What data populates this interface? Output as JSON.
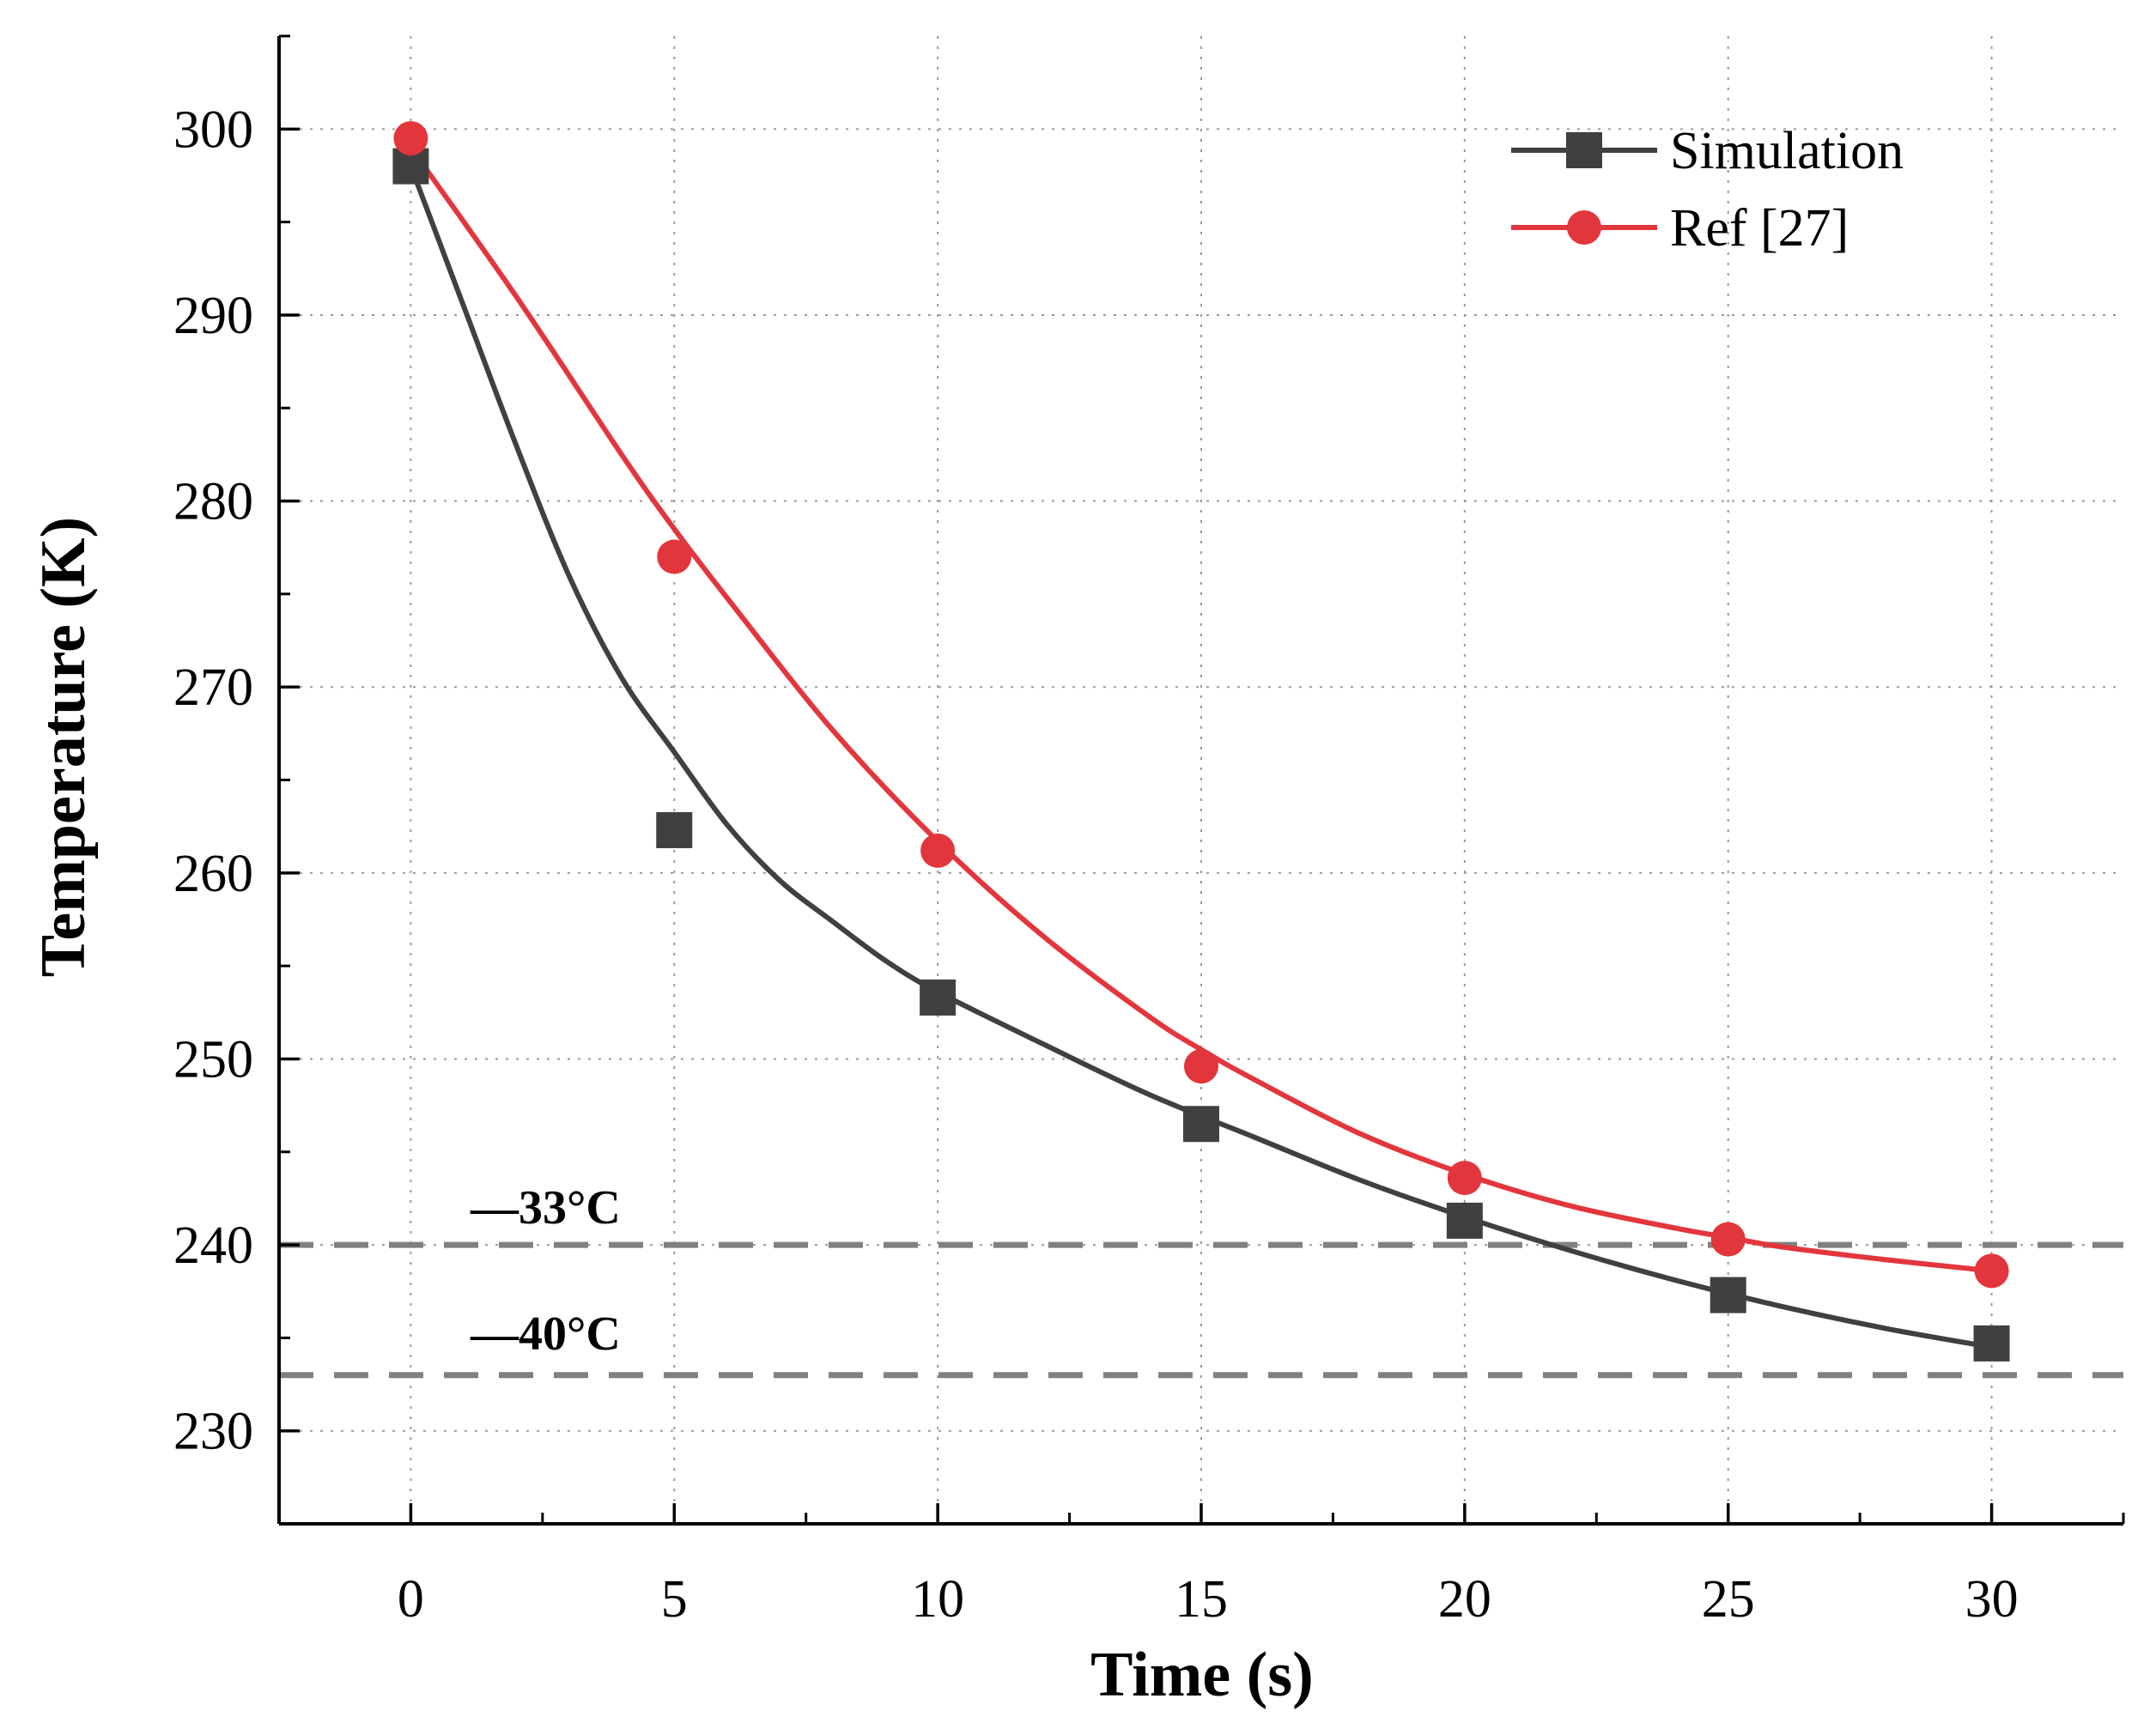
{
  "chart_data": {
    "type": "line",
    "xlabel": "Time (s)",
    "ylabel": "Temperature (K)",
    "xlim": [
      -2.5,
      32.5
    ],
    "ylim": [
      225,
      305
    ],
    "x_ticks": [
      0,
      5,
      10,
      15,
      20,
      25,
      30
    ],
    "x_tick_labels": [
      "0",
      "5",
      "10",
      "15",
      "20",
      "25",
      "30"
    ],
    "y_ticks": [
      230,
      240,
      250,
      260,
      270,
      280,
      290,
      300
    ],
    "y_tick_labels": [
      "230",
      "240",
      "250",
      "260",
      "270",
      "280",
      "290",
      "300"
    ],
    "grid": true,
    "legend_position": "top-right",
    "series": [
      {
        "name": "Simulation",
        "color": "#404040",
        "marker": "square",
        "x": [
          0,
          5,
          10,
          15,
          20,
          25,
          30
        ],
        "y": [
          298,
          262.3,
          253.3,
          246.5,
          241.3,
          237.3,
          234.7
        ],
        "curve_x": [
          0,
          1,
          2,
          3,
          4,
          5,
          6,
          7,
          8,
          9,
          10,
          12,
          14,
          16,
          18,
          20,
          22,
          24,
          26,
          28,
          30
        ],
        "curve_y": [
          298,
          290.5,
          283,
          276,
          270.5,
          266.5,
          262.6,
          259.6,
          257.4,
          255.3,
          253.6,
          250.8,
          248.1,
          245.8,
          243.5,
          241.5,
          239.7,
          238.1,
          236.7,
          235.5,
          234.5
        ]
      },
      {
        "name": "Ref [27]",
        "color": "#e3363c",
        "marker": "circle",
        "x": [
          0,
          5,
          10,
          15,
          20,
          25,
          30
        ],
        "y": [
          299.5,
          277,
          261.2,
          249.6,
          243.6,
          240.3,
          238.6
        ],
        "curve_x": [
          0,
          2,
          4,
          5,
          6,
          8,
          10,
          12,
          14,
          15,
          16,
          18,
          20,
          22,
          24,
          25,
          26,
          28,
          30
        ],
        "curve_y": [
          299,
          291,
          282.5,
          278.5,
          274.8,
          267.7,
          261.7,
          256.6,
          252.3,
          250.5,
          248.9,
          246,
          243.8,
          242.1,
          240.9,
          240.4,
          239.9,
          239.2,
          238.6
        ]
      }
    ],
    "reference_lines": [
      {
        "label": "—33°C",
        "y": 240,
        "color": "#808080",
        "style": "dashed"
      },
      {
        "label": "—40°C",
        "y": 233,
        "color": "#808080",
        "style": "dashed"
      }
    ]
  }
}
